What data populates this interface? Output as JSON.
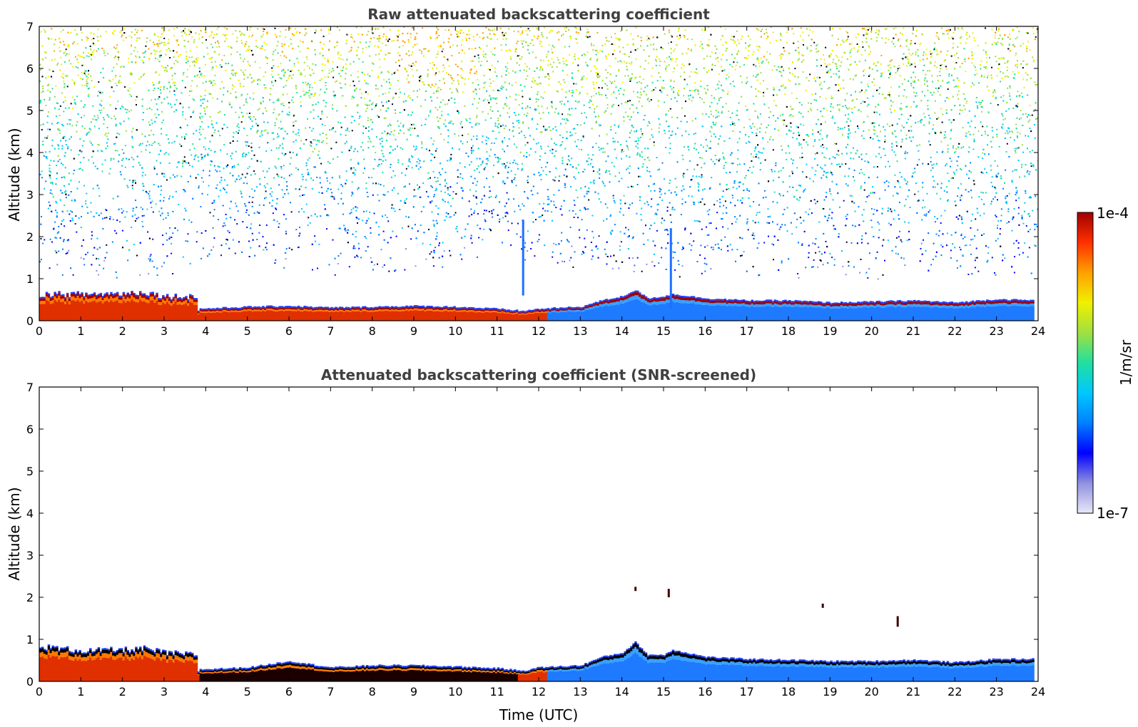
{
  "chart_data": [
    {
      "type": "heatmap",
      "title": "Raw attenuated backscattering coefficient",
      "xlabel": "",
      "ylabel": "Altitude (km)",
      "xlim": [
        0,
        24
      ],
      "ylim": [
        0,
        7
      ],
      "x_ticks": [
        "0",
        "1",
        "2",
        "3",
        "4",
        "5",
        "6",
        "7",
        "8",
        "9",
        "10",
        "11",
        "12",
        "13",
        "14",
        "15",
        "16",
        "17",
        "18",
        "19",
        "20",
        "21",
        "22",
        "23",
        "24"
      ],
      "y_ticks": [
        "0",
        "1",
        "2",
        "3",
        "4",
        "5",
        "6",
        "7"
      ],
      "boundary_layer_top_km": {
        "time_utc": [
          0,
          1,
          2,
          2.5,
          3,
          3.75,
          3.8,
          5,
          6,
          7,
          8,
          9,
          10,
          11,
          11.6,
          12,
          13,
          13.5,
          14,
          14.3,
          14.6,
          15,
          15.2,
          16,
          17,
          18,
          19,
          20,
          21,
          22,
          23,
          23.9
        ],
        "altitude_km": [
          0.6,
          0.6,
          0.62,
          0.65,
          0.55,
          0.55,
          0.25,
          0.3,
          0.32,
          0.28,
          0.3,
          0.32,
          0.3,
          0.25,
          0.2,
          0.25,
          0.3,
          0.45,
          0.55,
          0.7,
          0.5,
          0.55,
          0.6,
          0.5,
          0.45,
          0.45,
          0.4,
          0.42,
          0.45,
          0.4,
          0.48,
          0.45
        ]
      },
      "noise_floor_bottom_km": {
        "time_utc": [
          0,
          3.75,
          3.8,
          7,
          10,
          11,
          12,
          13,
          16,
          20,
          24
        ],
        "altitude_km": [
          1.0,
          1.0,
          1.4,
          1.1,
          1.2,
          1.6,
          1.3,
          1.1,
          1.0,
          1.0,
          1.0
        ]
      },
      "features": [
        {
          "time_utc": 15.15,
          "altitude_km": [
            0.3,
            2.2
          ]
        },
        {
          "time_utc": 11.6,
          "altitude_km": [
            0.6,
            2.4
          ]
        }
      ]
    },
    {
      "type": "heatmap",
      "title": "Attenuated backscattering coefficient (SNR-screened)",
      "xlabel": "Time (UTC)",
      "ylabel": "Altitude (km)",
      "xlim": [
        0,
        24
      ],
      "ylim": [
        0,
        7
      ],
      "x_ticks": [
        "0",
        "1",
        "2",
        "3",
        "4",
        "5",
        "6",
        "7",
        "8",
        "9",
        "10",
        "11",
        "12",
        "13",
        "14",
        "15",
        "16",
        "17",
        "18",
        "19",
        "20",
        "21",
        "22",
        "23",
        "24"
      ],
      "y_ticks": [
        "0",
        "1",
        "2",
        "3",
        "4",
        "5",
        "6",
        "7"
      ],
      "boundary_layer_top_km": {
        "time_utc": [
          0,
          1,
          2,
          2.5,
          3,
          3.75,
          3.8,
          5,
          6,
          7,
          8,
          9,
          10,
          11,
          11.6,
          12,
          13,
          13.5,
          14,
          14.3,
          14.6,
          15,
          15.2,
          16,
          17,
          18,
          19,
          20,
          21,
          22,
          23,
          23.9
        ],
        "altitude_km": [
          0.8,
          0.7,
          0.72,
          0.75,
          0.65,
          0.6,
          0.25,
          0.3,
          0.45,
          0.3,
          0.35,
          0.35,
          0.32,
          0.28,
          0.22,
          0.3,
          0.35,
          0.55,
          0.65,
          0.9,
          0.6,
          0.6,
          0.72,
          0.55,
          0.5,
          0.48,
          0.45,
          0.45,
          0.48,
          0.42,
          0.5,
          0.5
        ]
      },
      "screened_features": [
        {
          "time_utc": 15.1,
          "altitude_km": [
            2.0,
            2.2
          ]
        },
        {
          "time_utc": 18.8,
          "altitude_km": [
            1.75,
            1.85
          ]
        },
        {
          "time_utc": 20.6,
          "altitude_km": [
            1.3,
            1.55
          ]
        },
        {
          "time_utc": 14.3,
          "altitude_km": [
            2.15,
            2.25
          ]
        }
      ]
    }
  ],
  "colorbar": {
    "label": "1/m/sr",
    "max_label": "1e-4",
    "min_label": "1e-7",
    "colors": [
      "#e8e8f8",
      "#9090e0",
      "#0000ff",
      "#0080ff",
      "#00c8ff",
      "#20e0a0",
      "#a0e040",
      "#f0f000",
      "#ffa000",
      "#ff3000",
      "#a00000"
    ]
  }
}
